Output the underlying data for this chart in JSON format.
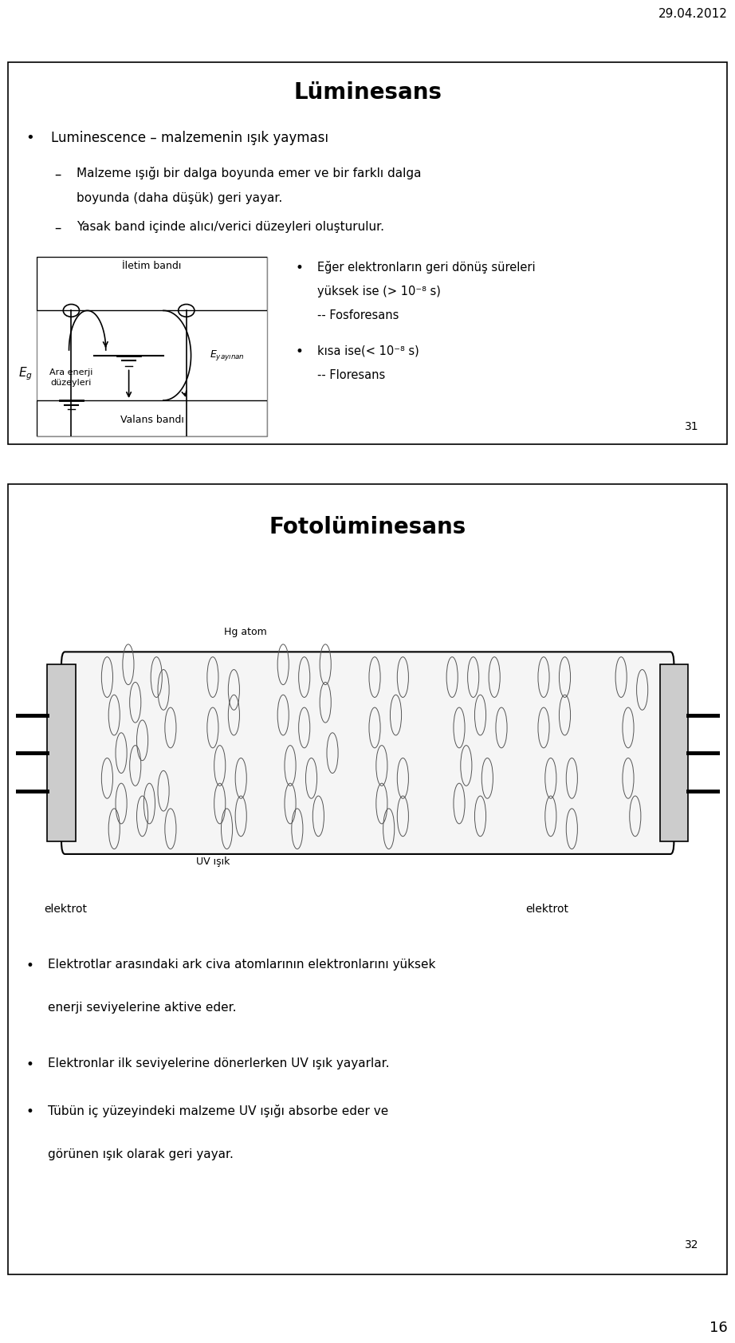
{
  "date_text": "29.04.2012",
  "page_number": "16",
  "slide1": {
    "title": "Lüminesans",
    "bullet1": "Luminescence – malzemenin ışık yayması",
    "sub1a": "Malzeme ışığı bir dalga boyunda emer ve bir farklı dalga",
    "sub1b": "boyunda (daha düşük) geri yayar.",
    "sub2": "Yasak band içinde alıcı/verici düzeyleri oluşturulur.",
    "diag_iletim": "İletim bandı",
    "diag_valans": "Valans bandı",
    "diag_ara1": "Ara enerji",
    "diag_ara2": "düzeyleri",
    "diag_Eg": "$E_g$",
    "diag_Eyayinan": "$E_{yayınan}$",
    "right_b1_l1": "Eğer elektronların geri dönüş süreleri",
    "right_b1_l2": "yüksek ise (> 10⁻⁸ s)",
    "right_b1_l3": "-- Fosforesans",
    "right_b2_l1": "kısa ise(< 10⁻⁸ s)",
    "right_b2_l2": "-- Floresans",
    "page_num": "31"
  },
  "slide2": {
    "title": "Fotolüminesans",
    "hg_label": "Hg atom",
    "uv_label": "UV ışık",
    "elektrot_left": "elektrot",
    "elektrot_right": "elektrot",
    "bullet1a": "Elektrotlar arasındaki ark civa atomlarının elektronlarını yüksek",
    "bullet1b": "enerji seviyelerine aktive eder.",
    "bullet2": "Elektronlar ilk seviyelerine dönerlerken UV ışık yayarlar.",
    "bullet3a": "Tübün iç yüzeyindeki malzeme UV ışığı absorbe eder ve",
    "bullet3b": "görünen ışık olarak geri yayar.",
    "page_num": "32"
  },
  "bg_color": "#ffffff",
  "text_color": "#000000"
}
